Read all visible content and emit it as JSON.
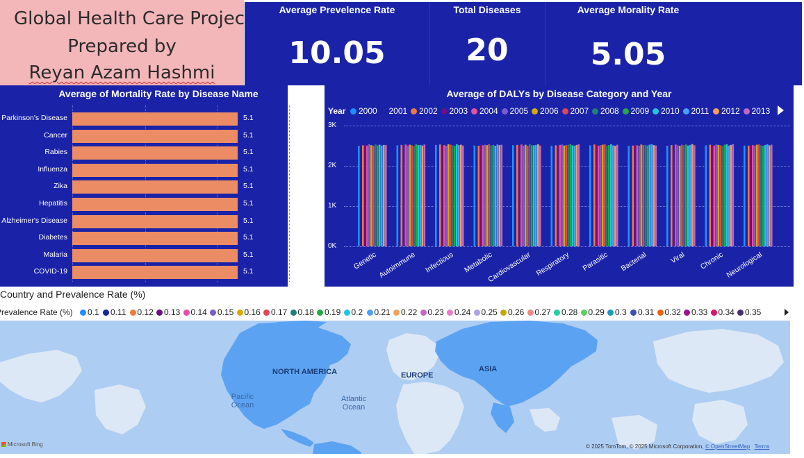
{
  "title_card": {
    "line1": "Global Health Care Project",
    "line2": "Prepared by",
    "line3": "Reyan Azam Hashmi"
  },
  "kpis": [
    {
      "label": "Average Prevelence Rate",
      "value": "10.05"
    },
    {
      "label": "Total Diseases",
      "value": "20"
    },
    {
      "label": "Average Morality Rate",
      "value": "5.05"
    }
  ],
  "mortality_chart": {
    "title": "Average of Mortality Rate by Disease Name",
    "categories": [
      "Parkinson's Disease",
      "Cancer",
      "Rabies",
      "Influenza",
      "Zika",
      "Hepatitis",
      "Alzheimer's Disease",
      "Diabetes",
      "Malaria",
      "COVID-19"
    ],
    "values": [
      5.1,
      5.1,
      5.1,
      5.1,
      5.1,
      5.1,
      5.1,
      5.1,
      5.1,
      5.1
    ],
    "value_labels": [
      "5.1",
      "5.1",
      "5.1",
      "5.1",
      "5.1",
      "5.1",
      "5.1",
      "5.1",
      "5.1",
      "5.1"
    ],
    "bar_color": "#ec8c64"
  },
  "dalys_chart": {
    "title": "Average of DALYs by Disease Category and Year",
    "legend_title": "Year",
    "years": [
      "2000",
      "2001",
      "2002",
      "2003",
      "2004",
      "2005",
      "2006",
      "2007",
      "2008",
      "2009",
      "2010",
      "2011",
      "2012",
      "2013"
    ],
    "year_colors": [
      "#1f8fff",
      "#1a23a8",
      "#f07a3a",
      "#6a0f8a",
      "#e6509e",
      "#7a5cd0",
      "#d6aa00",
      "#e0455a",
      "#1f7f7a",
      "#23a845",
      "#1ec7e0",
      "#4aa0ff",
      "#f5a05a",
      "#c067c8"
    ],
    "categories": [
      "Genetic",
      "Autoimmune",
      "Infectious",
      "Metabolic",
      "Cardiovascular",
      "Respiratory",
      "Parasitic",
      "Bacterial",
      "Viral",
      "Chronic",
      "Neurological"
    ],
    "y_ticks": [
      "0K",
      "1K",
      "2K",
      "3K"
    ]
  },
  "chart_data": [
    {
      "type": "bar",
      "title": "Average of Mortality Rate by Disease Name",
      "categories": [
        "Parkinson's Disease",
        "Cancer",
        "Rabies",
        "Influenza",
        "Zika",
        "Hepatitis",
        "Alzheimer's Disease",
        "Diabetes",
        "Malaria",
        "COVID-19"
      ],
      "values": [
        5.1,
        5.1,
        5.1,
        5.1,
        5.1,
        5.1,
        5.1,
        5.1,
        5.1,
        5.1
      ],
      "orientation": "horizontal",
      "xlim": [
        0,
        5.5
      ]
    },
    {
      "type": "bar",
      "title": "Average of DALYs by Disease Category and Year",
      "categories": [
        "Genetic",
        "Autoimmune",
        "Infectious",
        "Metabolic",
        "Cardiovascular",
        "Respiratory",
        "Parasitic",
        "Bacterial",
        "Viral",
        "Chronic",
        "Neurological"
      ],
      "legend_title": "Year",
      "ylim": [
        0,
        3000
      ],
      "y_ticks": [
        "0K",
        "1K",
        "2K",
        "3K"
      ],
      "grid": true,
      "legend_position": "top",
      "series": [
        {
          "name": "2000",
          "values": [
            2500,
            2510,
            2520,
            2505,
            2515,
            2500,
            2510,
            2495,
            2500,
            2510,
            2505
          ]
        },
        {
          "name": "2001",
          "values": [
            2530,
            2500,
            2510,
            2520,
            2500,
            2525,
            2505,
            2515,
            2520,
            2500,
            2530
          ]
        },
        {
          "name": "2002",
          "values": [
            2510,
            2520,
            2530,
            2500,
            2520,
            2510,
            2530,
            2505,
            2515,
            2525,
            2500
          ]
        },
        {
          "name": "2003",
          "values": [
            2520,
            2515,
            2505,
            2530,
            2510,
            2500,
            2520,
            2525,
            2505,
            2515,
            2520
          ]
        },
        {
          "name": "2004",
          "values": [
            2505,
            2530,
            2515,
            2510,
            2530,
            2520,
            2500,
            2510,
            2530,
            2505,
            2515
          ]
        },
        {
          "name": "2005",
          "values": [
            2540,
            2505,
            2500,
            2525,
            2505,
            2530,
            2515,
            2500,
            2510,
            2530,
            2505
          ]
        },
        {
          "name": "2006",
          "values": [
            2515,
            2525,
            2540,
            2515,
            2525,
            2505,
            2525,
            2530,
            2500,
            2520,
            2525
          ]
        },
        {
          "name": "2007",
          "values": [
            2500,
            2510,
            2525,
            2540,
            2500,
            2515,
            2535,
            2515,
            2525,
            2510,
            2530
          ]
        },
        {
          "name": "2008",
          "values": [
            2530,
            2500,
            2510,
            2505,
            2540,
            2525,
            2505,
            2520,
            2515,
            2500,
            2510
          ]
        },
        {
          "name": "2009",
          "values": [
            2510,
            2535,
            2500,
            2520,
            2515,
            2540,
            2515,
            2505,
            2530,
            2525,
            2500
          ]
        },
        {
          "name": "2010",
          "values": [
            2525,
            2515,
            2535,
            2500,
            2510,
            2510,
            2540,
            2525,
            2505,
            2535,
            2520
          ]
        },
        {
          "name": "2011",
          "values": [
            2505,
            2520,
            2515,
            2530,
            2520,
            2500,
            2510,
            2540,
            2520,
            2505,
            2535
          ]
        },
        {
          "name": "2012",
          "values": [
            2520,
            2505,
            2525,
            2515,
            2535,
            2520,
            2500,
            2515,
            2540,
            2520,
            2510
          ]
        },
        {
          "name": "2013",
          "values": [
            2515,
            2530,
            2505,
            2525,
            2505,
            2535,
            2525,
            2505,
            2510,
            2540,
            2525
          ]
        }
      ]
    }
  ],
  "map_section": {
    "title": "Country and Prevalence Rate (%)",
    "legend_label": "Prevalence Rate (%)",
    "legend_items": [
      {
        "label": "0.1",
        "color": "#1f8fff"
      },
      {
        "label": "0.11",
        "color": "#1a23a8"
      },
      {
        "label": "0.12",
        "color": "#f07a3a"
      },
      {
        "label": "0.13",
        "color": "#6a0f8a"
      },
      {
        "label": "0.14",
        "color": "#e6509e"
      },
      {
        "label": "0.15",
        "color": "#7a5cd0"
      },
      {
        "label": "0.16",
        "color": "#d6aa00"
      },
      {
        "label": "0.17",
        "color": "#e0455a"
      },
      {
        "label": "0.18",
        "color": "#1f7f7a"
      },
      {
        "label": "0.19",
        "color": "#23a845"
      },
      {
        "label": "0.2",
        "color": "#1ec7e0"
      },
      {
        "label": "0.21",
        "color": "#4aa0ff"
      },
      {
        "label": "0.22",
        "color": "#f5a05a"
      },
      {
        "label": "0.23",
        "color": "#c067c8"
      },
      {
        "label": "0.24",
        "color": "#f07ac8"
      },
      {
        "label": "0.25",
        "color": "#b0a0e8"
      },
      {
        "label": "0.26",
        "color": "#c8a800"
      },
      {
        "label": "0.27",
        "color": "#f08a80"
      },
      {
        "label": "0.28",
        "color": "#20d0a0"
      },
      {
        "label": "0.29",
        "color": "#60d060"
      },
      {
        "label": "0.3",
        "color": "#1a9ac0"
      },
      {
        "label": "0.31",
        "color": "#4050b8"
      },
      {
        "label": "0.32",
        "color": "#f06010"
      },
      {
        "label": "0.33",
        "color": "#a01090"
      },
      {
        "label": "0.34",
        "color": "#e0106a"
      },
      {
        "label": "0.35",
        "color": "#4a3070"
      }
    ],
    "map_labels": {
      "north_america": "NORTH AMERICA",
      "europe": "EUROPE",
      "asia": "ASIA",
      "pacific_ocean": "Pacific Ocean",
      "atlantic_ocean": "Atlantic Ocean"
    },
    "bing_logo": "Microsoft Bing",
    "attribution": "© 2025 TomTom, © 2025 Microsoft Corporation,",
    "osm_link": "© OpenStreetMap",
    "terms_link": "Terms"
  }
}
